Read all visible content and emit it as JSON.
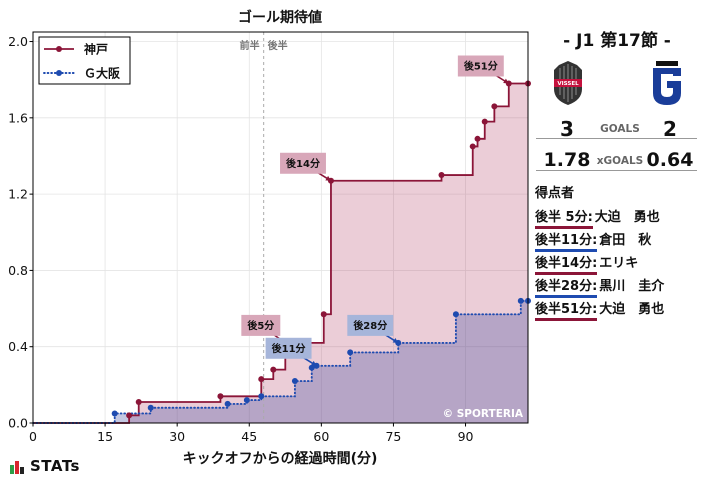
{
  "chart_data": {
    "type": "line",
    "title": "ゴール期待値",
    "xlabel": "キックオフからの経過時間(分)",
    "ylabel": "",
    "xlim": [
      0,
      103
    ],
    "ylim": [
      0,
      2.05
    ],
    "xticks": [
      0,
      15,
      30,
      45,
      60,
      75,
      90
    ],
    "yticks": [
      "0.0",
      "0.4",
      "0.8",
      "1.2",
      "1.6",
      "2.0"
    ],
    "grid": true,
    "legend": "top-left",
    "step": "post",
    "half_time": 48,
    "half_labels": {
      "first": "前半",
      "second": "後半"
    },
    "series": [
      {
        "name": "神戸",
        "color": "#8b1538",
        "fill": "#b0385e",
        "label_fill": "#d8a7b9",
        "line_style": "solid",
        "x": [
          0,
          20,
          22,
          39,
          47.5,
          50,
          52.5,
          60.5,
          62,
          85,
          91.5,
          92.5,
          94,
          96,
          99,
          103
        ],
        "y": [
          0,
          0.04,
          0.11,
          0.14,
          0.23,
          0.28,
          0.42,
          0.57,
          1.27,
          1.3,
          1.45,
          1.49,
          1.58,
          1.66,
          1.78,
          1.78
        ]
      },
      {
        "name": "Ｇ大阪",
        "color": "#1e4bb0",
        "fill": "#3a4aa0",
        "label_fill": "#a6b5da",
        "line_style": "dotted",
        "x": [
          0,
          17,
          24.5,
          40.5,
          44.5,
          47.5,
          54.5,
          58,
          59,
          66,
          76,
          88,
          101.5,
          103
        ],
        "y": [
          0,
          0.05,
          0.08,
          0.1,
          0.12,
          0.14,
          0.22,
          0.29,
          0.3,
          0.37,
          0.42,
          0.57,
          0.64,
          0.64
        ]
      }
    ],
    "annotations": [
      {
        "text": "後5分",
        "series": 0,
        "x": 52.5,
        "y": 0.42
      },
      {
        "text": "後11分",
        "series": 1,
        "x": 59,
        "y": 0.3
      },
      {
        "text": "後14分",
        "series": 0,
        "x": 62,
        "y": 1.27
      },
      {
        "text": "後28分",
        "series": 1,
        "x": 76,
        "y": 0.42
      },
      {
        "text": "後51分",
        "series": 0,
        "x": 99,
        "y": 1.78
      }
    ],
    "watermark": "© SPORTERIA"
  },
  "match": {
    "round": "- J1 第17節 -",
    "home": {
      "logo_icon": "vissel-kobe-crest-icon",
      "logo_text": "VISSEL",
      "goals": "3",
      "xg": "1.78"
    },
    "away": {
      "logo_icon": "gamba-osaka-emblem-icon",
      "goals": "2",
      "xg": "0.64"
    },
    "goals_label": "GOALS",
    "xg_label": "xGOALS",
    "scorers_title": "得点者",
    "scorers": [
      {
        "time": "後半 5分:",
        "player": "大迫　勇也",
        "series": 0
      },
      {
        "time": "後半11分:",
        "player": "倉田　秋",
        "series": 1
      },
      {
        "time": "後半14分:",
        "player": "エリキ",
        "series": 0
      },
      {
        "time": "後半28分:",
        "player": "黒川　圭介",
        "series": 1
      },
      {
        "time": "後半51分:",
        "player": "大迫　勇也",
        "series": 0
      }
    ]
  },
  "branding": {
    "stats_logo_icon": "stats-bars-icon",
    "stats_logo_text": "STATs"
  }
}
